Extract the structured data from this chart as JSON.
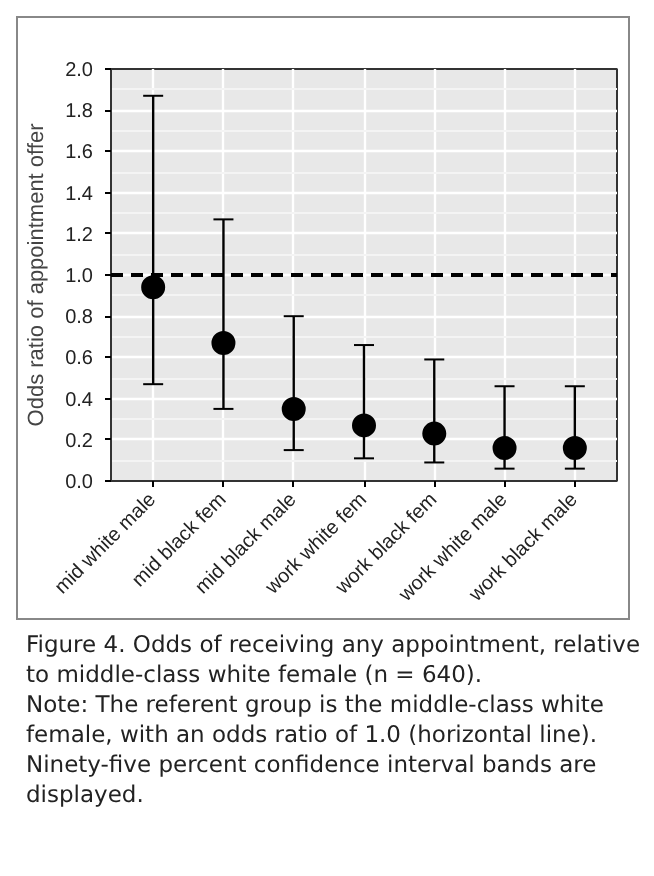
{
  "chart_data": {
    "type": "scatter",
    "ylabel": "Odds ratio of appointment offer",
    "categories": [
      "mid white male",
      "mid black fem",
      "mid black male",
      "work white fem",
      "work black fem",
      "work white male",
      "work black male"
    ],
    "values": [
      0.94,
      0.67,
      0.35,
      0.27,
      0.23,
      0.16,
      0.16
    ],
    "errors": [
      [
        0.47,
        1.87
      ],
      [
        0.35,
        1.27
      ],
      [
        0.15,
        0.8
      ],
      [
        0.11,
        0.66
      ],
      [
        0.09,
        0.59
      ],
      [
        0.06,
        0.46
      ],
      [
        0.06,
        0.46
      ]
    ],
    "color": "#000000",
    "marker": "circle",
    "ylim": [
      0,
      2.0
    ],
    "yticks": [
      {
        "value": 0,
        "label": "0.0"
      },
      {
        "value": 0.2,
        "label": "0.2"
      },
      {
        "value": 0.4,
        "label": "0.4"
      },
      {
        "value": 0.6,
        "label": "0.6"
      },
      {
        "value": 0.8,
        "label": "0.8"
      },
      {
        "value": 1.0,
        "label": "1.0"
      },
      {
        "value": 1.2,
        "label": "1.2"
      },
      {
        "value": 1.4,
        "label": "1.4"
      },
      {
        "value": 1.6,
        "label": "1.6"
      },
      {
        "value": 1.8,
        "label": "1.8"
      },
      {
        "value": 2.0,
        "label": "2.0"
      }
    ],
    "grid": true,
    "ref_lines": [
      {
        "axis": "y",
        "value": 1.0,
        "line_style": "dashed",
        "color": "#000000"
      }
    ],
    "annotations": [
      "Figure 4.  Odds of receiving any appointment, relative to middle-class white female (n = 640).",
      "Note: The referent group is the middle-class white female, with an odds ratio of 1.0 (horizontal line). Ninety-five percent confidence interval bands are displayed."
    ]
  }
}
